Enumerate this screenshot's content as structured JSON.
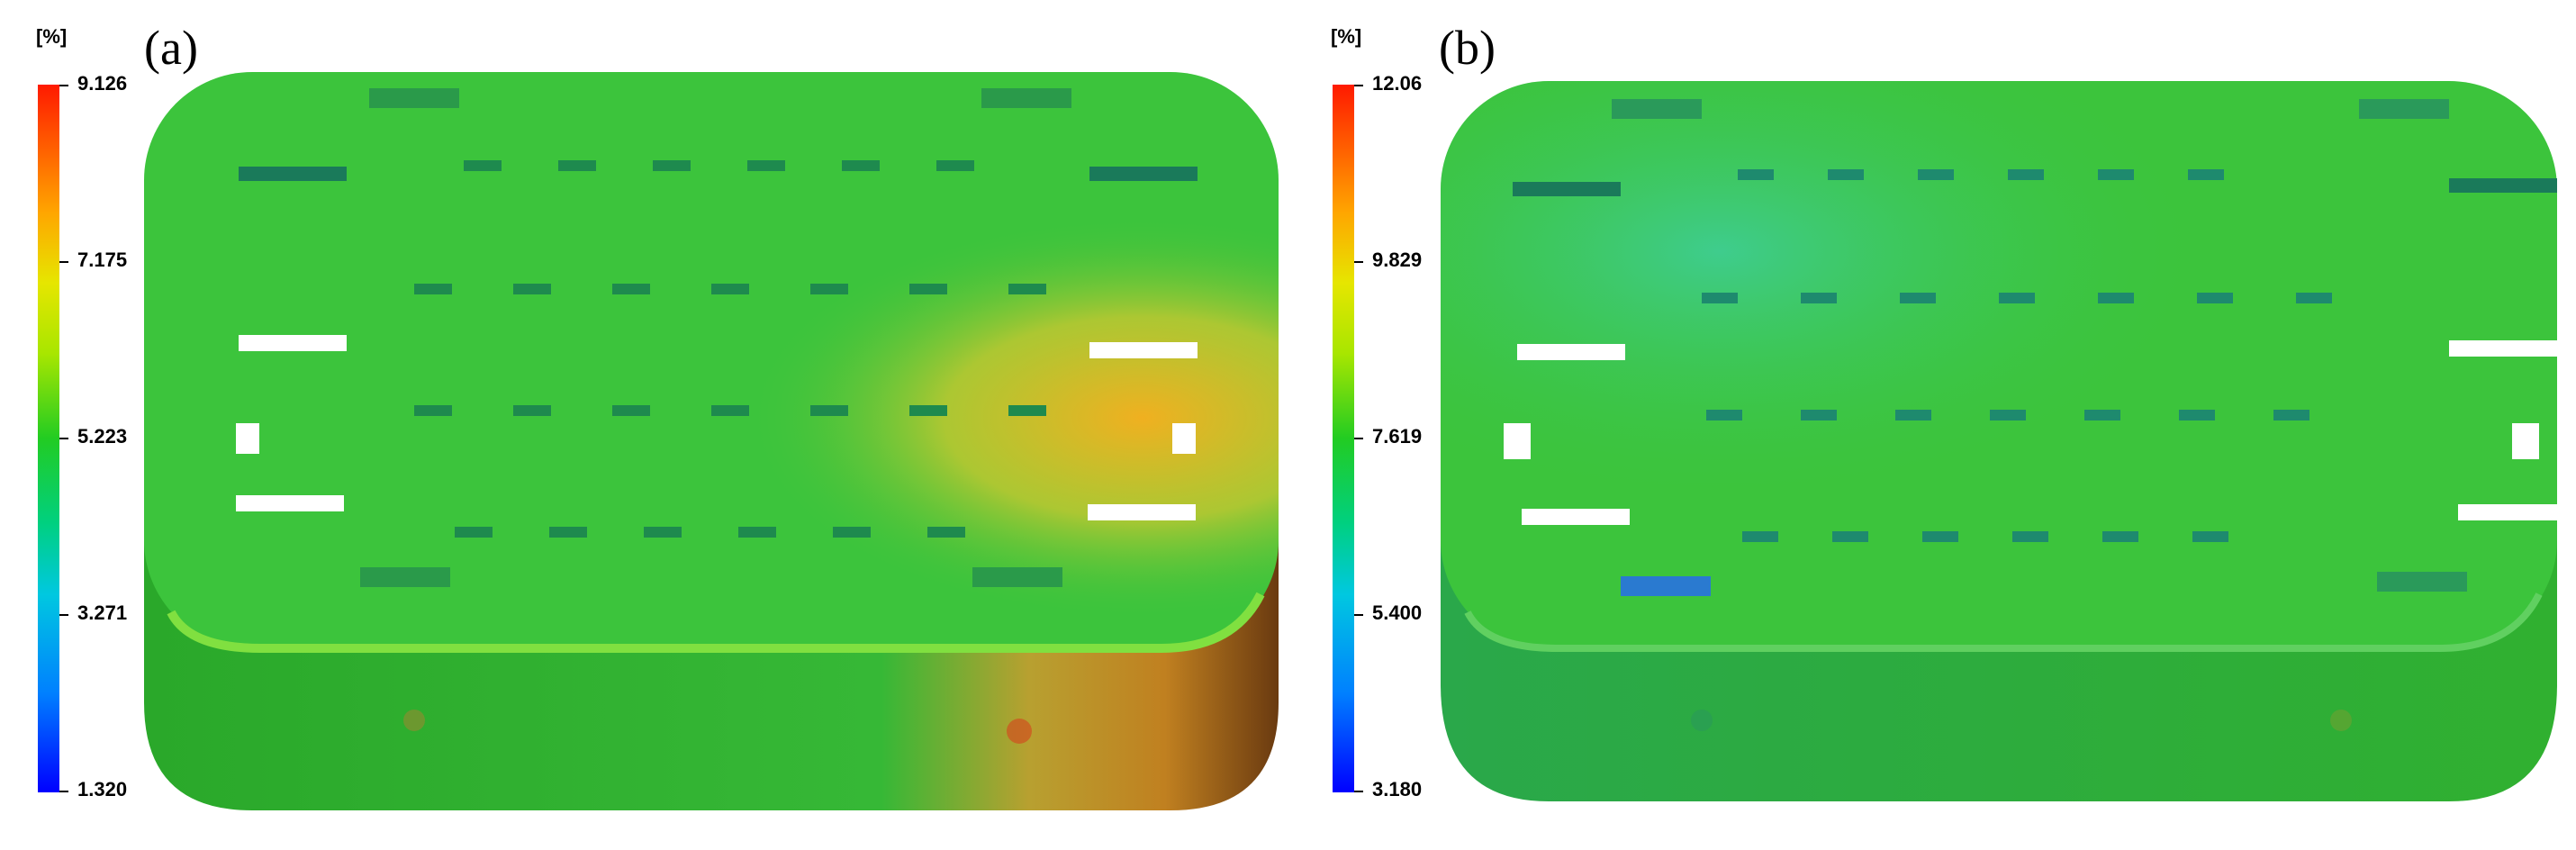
{
  "panels": [
    {
      "label": "(a)",
      "unit": "[%]",
      "ticks": [
        "9.126",
        "7.175",
        "5.223",
        "3.271",
        "1.320"
      ],
      "max": 9.126,
      "min": 1.32
    },
    {
      "label": "(b)",
      "unit": "[%]",
      "ticks": [
        "12.06",
        "9.829",
        "7.619",
        "5.400",
        "3.180"
      ],
      "max": 12.06,
      "min": 3.18
    }
  ],
  "colors": {
    "scale_top": "#ff1a00",
    "scale_orange": "#ffa500",
    "scale_yellow": "#e6e600",
    "scale_green": "#22cc22",
    "scale_cyan": "#00c8e0",
    "scale_bottom": "#0000ff",
    "part_green": "#2fc42f",
    "part_green_dark": "#24a824",
    "part_hot": "#e6a020"
  }
}
